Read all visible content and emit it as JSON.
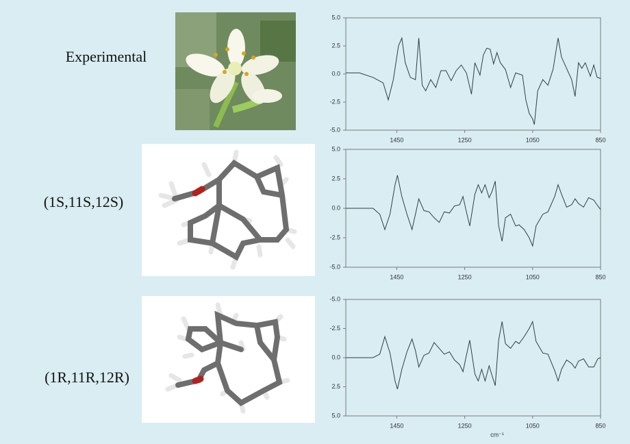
{
  "chart_data": [
    {
      "type": "line",
      "title": "Experimental",
      "color": "#2f3f3f",
      "xlim": [
        1600,
        850
      ],
      "xticks": [
        1450,
        1250,
        1050,
        850
      ],
      "ylim": [
        -5,
        5
      ],
      "yticks": [
        {
          "value": 5,
          "label": "5.0"
        },
        {
          "value": 2.5,
          "label": "2.5"
        },
        {
          "value": 0,
          "label": "0.0"
        },
        {
          "value": -2.5,
          "label": "-2.5"
        },
        {
          "value": -5,
          "label": "-5.0"
        }
      ],
      "x": [
        1600,
        1560,
        1520,
        1490,
        1475,
        1460,
        1445,
        1435,
        1425,
        1410,
        1395,
        1385,
        1375,
        1365,
        1350,
        1335,
        1320,
        1305,
        1290,
        1275,
        1260,
        1245,
        1230,
        1220,
        1205,
        1195,
        1185,
        1175,
        1165,
        1155,
        1145,
        1130,
        1115,
        1100,
        1080,
        1070,
        1060,
        1050,
        1045,
        1035,
        1020,
        1005,
        990,
        975,
        965,
        950,
        935,
        925,
        915,
        905,
        895,
        880,
        870,
        860,
        850
      ],
      "values": [
        0.1,
        0.1,
        -0.3,
        -0.8,
        -2.3,
        -0.5,
        2.5,
        3.2,
        1.0,
        -0.3,
        -0.5,
        3.2,
        -1.0,
        -1.5,
        -0.5,
        -1.2,
        0.3,
        0.3,
        -0.6,
        0.3,
        0.8,
        0.1,
        -1.8,
        1.0,
        -0.1,
        1.7,
        2.3,
        2.2,
        0.9,
        1.9,
        1.0,
        0.4,
        -1.2,
        0.1,
        -0.1,
        -2.3,
        -3.5,
        -4.0,
        -4.5,
        -1.5,
        -0.5,
        -1.0,
        0.4,
        3.2,
        1.5,
        0.5,
        -0.5,
        -2.0,
        1.0,
        0.5,
        1.0,
        -0.2,
        0.8,
        -0.3,
        -0.4
      ]
    },
    {
      "type": "line",
      "title": "(1S,11S,12S)",
      "color": "#2f3f3f",
      "xlim": [
        1600,
        850
      ],
      "xticks": [
        1450,
        1250,
        1050,
        850
      ],
      "ylim": [
        -5,
        5
      ],
      "yticks": [
        {
          "value": 5,
          "label": "5.0"
        },
        {
          "value": 2.5,
          "label": "2.5"
        },
        {
          "value": 0,
          "label": "0.0"
        },
        {
          "value": -2.5,
          "label": "-2.5"
        },
        {
          "value": -5,
          "label": "-5.0"
        }
      ],
      "x": [
        1600,
        1520,
        1500,
        1485,
        1470,
        1455,
        1448,
        1435,
        1420,
        1405,
        1395,
        1385,
        1370,
        1355,
        1340,
        1325,
        1310,
        1295,
        1280,
        1265,
        1255,
        1245,
        1235,
        1220,
        1210,
        1200,
        1190,
        1178,
        1170,
        1160,
        1150,
        1140,
        1130,
        1115,
        1100,
        1090,
        1075,
        1060,
        1050,
        1040,
        1020,
        1005,
        985,
        975,
        965,
        950,
        935,
        925,
        915,
        900,
        885,
        870,
        858,
        850
      ],
      "values": [
        0,
        0,
        -0.5,
        -1.8,
        -0.5,
        2.0,
        2.8,
        1.0,
        -0.5,
        -1.8,
        -0.5,
        0.8,
        -0.2,
        -0.3,
        -0.8,
        -1.2,
        -0.3,
        -0.4,
        0.2,
        0.3,
        1.0,
        -0.3,
        -1.5,
        1.2,
        2.0,
        1.3,
        2.0,
        0.9,
        1.4,
        2.3,
        -1.5,
        -2.8,
        -0.8,
        -0.5,
        -1.5,
        -1.4,
        -1.8,
        -2.5,
        -3.2,
        -1.5,
        -0.5,
        -0.3,
        1.0,
        2.0,
        1.2,
        0.1,
        0.3,
        0.8,
        0.4,
        0.1,
        0.9,
        0.7,
        0.2,
        -0.1
      ]
    },
    {
      "type": "line",
      "title": "(1R,11R,12R)",
      "color": "#2f3f3f",
      "xlabel": "cm⁻¹",
      "xlim": [
        1600,
        850
      ],
      "xticks": [
        1450,
        1250,
        1050,
        850
      ],
      "ylim": [
        5,
        -5
      ],
      "yticks": [
        {
          "value": -5,
          "label": "-5.0"
        },
        {
          "value": -2.5,
          "label": "-2.5"
        },
        {
          "value": 0,
          "label": "0.0"
        },
        {
          "value": 2.5,
          "label": "2.5"
        },
        {
          "value": 5,
          "label": "5.0"
        }
      ],
      "x": [
        1600,
        1520,
        1500,
        1485,
        1470,
        1455,
        1448,
        1435,
        1420,
        1405,
        1395,
        1385,
        1370,
        1355,
        1340,
        1325,
        1310,
        1295,
        1280,
        1265,
        1255,
        1245,
        1235,
        1220,
        1210,
        1200,
        1190,
        1178,
        1170,
        1160,
        1150,
        1140,
        1130,
        1115,
        1100,
        1090,
        1075,
        1060,
        1050,
        1040,
        1020,
        1005,
        985,
        975,
        965,
        950,
        935,
        925,
        915,
        900,
        885,
        870,
        858,
        850
      ],
      "values": [
        0,
        0,
        -0.3,
        -1.8,
        -0.4,
        2.0,
        2.7,
        1.0,
        -0.5,
        -1.6,
        -0.6,
        0.8,
        -0.2,
        -0.4,
        -1.3,
        -0.8,
        -0.3,
        -0.5,
        0.2,
        0.6,
        1.2,
        -0.2,
        -1.5,
        1.4,
        2.0,
        1.0,
        2.0,
        0.7,
        1.5,
        2.4,
        -1.5,
        -3.1,
        -1.2,
        -0.8,
        -1.4,
        -1.2,
        -1.8,
        -2.5,
        -3.1,
        -1.4,
        -0.4,
        -0.3,
        1.1,
        2.0,
        1.0,
        0.2,
        0.5,
        0.9,
        0.3,
        0.1,
        0.8,
        0.8,
        0.1,
        0.0
      ]
    }
  ]
}
